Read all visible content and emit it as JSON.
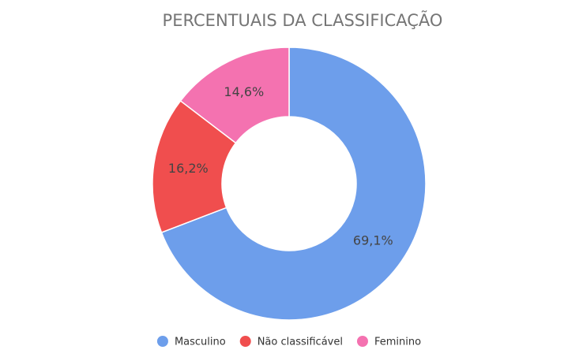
{
  "chart_data": {
    "type": "donut",
    "title": "PERCENTUAIS DA CLASSIFICAÇÃO",
    "categories": [
      "Masculino",
      "Não classificável",
      "Feminino"
    ],
    "values": [
      69.1,
      16.2,
      14.6
    ],
    "value_labels": [
      "69,1%",
      "16,2%",
      "14,6%"
    ],
    "colors": [
      "#6d9eeb",
      "#f04e4e",
      "#f472b0"
    ],
    "legend": "bottom"
  }
}
